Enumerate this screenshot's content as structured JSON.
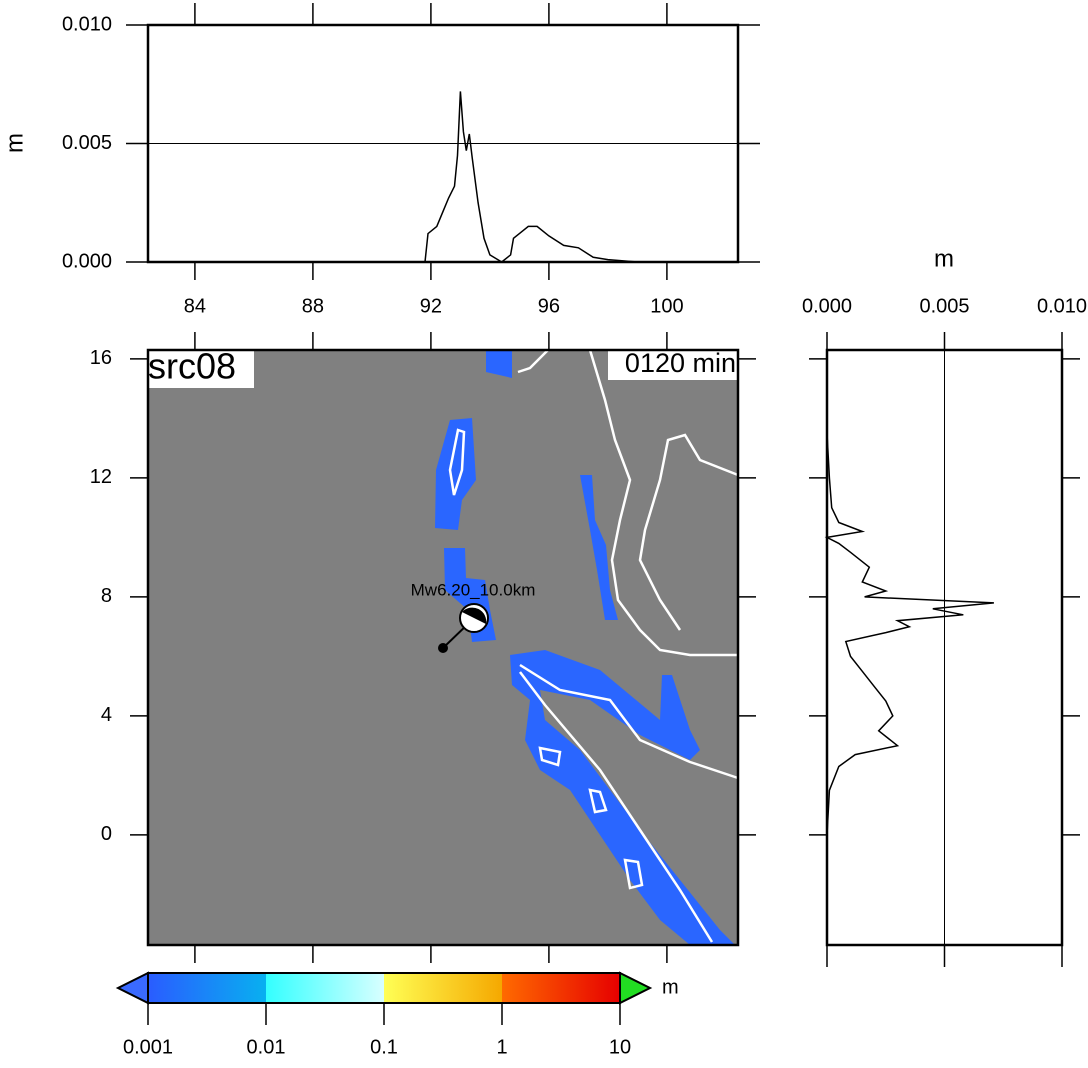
{
  "chart_data": [
    {
      "type": "line",
      "ylabel": "m",
      "x": [
        82.41,
        91.8,
        91.9,
        92.2,
        92.4,
        92.6,
        92.8,
        92.9,
        93.0,
        93.1,
        93.2,
        93.3,
        93.4,
        93.6,
        93.8,
        94.0,
        94.4,
        94.7,
        94.8,
        95.0,
        95.3,
        95.6,
        96.0,
        96.5,
        97.0,
        97.5,
        98.0,
        99.0,
        102.41
      ],
      "series": [
        {
          "color": "#000000",
          "values": [
            0,
            0,
            0.0012,
            0.0015,
            0.0021,
            0.0027,
            0.0032,
            0.0045,
            0.0072,
            0.0055,
            0.0047,
            0.0054,
            0.0044,
            0.0025,
            0.001,
            0.0003,
            0,
            0.0003,
            0.001,
            0.0012,
            0.0015,
            0.0015,
            0.0011,
            0.0007,
            0.0006,
            0.0002,
            0.0001,
            0,
            0
          ]
        }
      ],
      "xlim": [
        82.41,
        102.41
      ],
      "ylim": [
        0,
        0.01
      ],
      "xticks": [
        84,
        88,
        92,
        96,
        100
      ],
      "yticks": [
        {
          "value": 0,
          "label": "0.000"
        },
        {
          "value": 0.005,
          "label": "0.005"
        },
        {
          "value": 0.01,
          "label": "0.010"
        }
      ],
      "grid": true
    },
    {
      "type": "map",
      "title": "src08",
      "subtitle": "0120 min",
      "annotation": "Mw6.20_10.0km",
      "xlim": [
        82.41,
        102.41
      ],
      "ylim": [
        -3.7,
        16.3
      ],
      "yticks": [
        0,
        4,
        8,
        12,
        16
      ],
      "background": "#808080"
    },
    {
      "type": "line",
      "orientation": "horizontal",
      "xlabel": "m",
      "y": [
        16.3,
        13.5,
        12.0,
        11.0,
        10.5,
        10.2,
        10.0,
        9.8,
        9.5,
        9.0,
        8.5,
        8.2,
        8.0,
        7.8,
        7.6,
        7.4,
        7.2,
        7.0,
        6.8,
        6.5,
        6.0,
        5.5,
        5.0,
        4.5,
        4.0,
        3.5,
        3.0,
        2.7,
        2.3,
        1.5,
        0,
        -3.7
      ],
      "series": [
        {
          "color": "#000000",
          "values": [
            0,
            0,
            0.0001,
            0.0002,
            0.0005,
            0.0015,
            0,
            0.0005,
            0.001,
            0.0018,
            0.0015,
            0.0025,
            0.0016,
            0.0071,
            0.0045,
            0.0058,
            0.003,
            0.0035,
            0.0025,
            0.0008,
            0.001,
            0.0015,
            0.002,
            0.0025,
            0.0028,
            0.0022,
            0.003,
            0.0012,
            0.0005,
            0.0001,
            0,
            0
          ]
        }
      ],
      "xlim": [
        0,
        0.01
      ],
      "ylim": [
        -3.7,
        16.3
      ],
      "xticks": [
        {
          "value": 0,
          "label": "0.000"
        },
        {
          "value": 0.005,
          "label": "0.005"
        },
        {
          "value": 0.01,
          "label": "0.010"
        }
      ],
      "yticks": [
        0,
        4,
        8,
        12,
        16
      ],
      "grid": true
    },
    {
      "type": "colorbar",
      "log": true,
      "ticks": [
        0.001,
        0.01,
        0.1,
        1,
        10
      ],
      "unit": "m",
      "colors": [
        "#2a5cff",
        "#08b0f0",
        "#33ffff",
        "#d8ffff",
        "#ffff55",
        "#f5a800",
        "#ff6a00",
        "#e60000"
      ],
      "under": "#3a6aff",
      "over": "#22dd22"
    }
  ]
}
